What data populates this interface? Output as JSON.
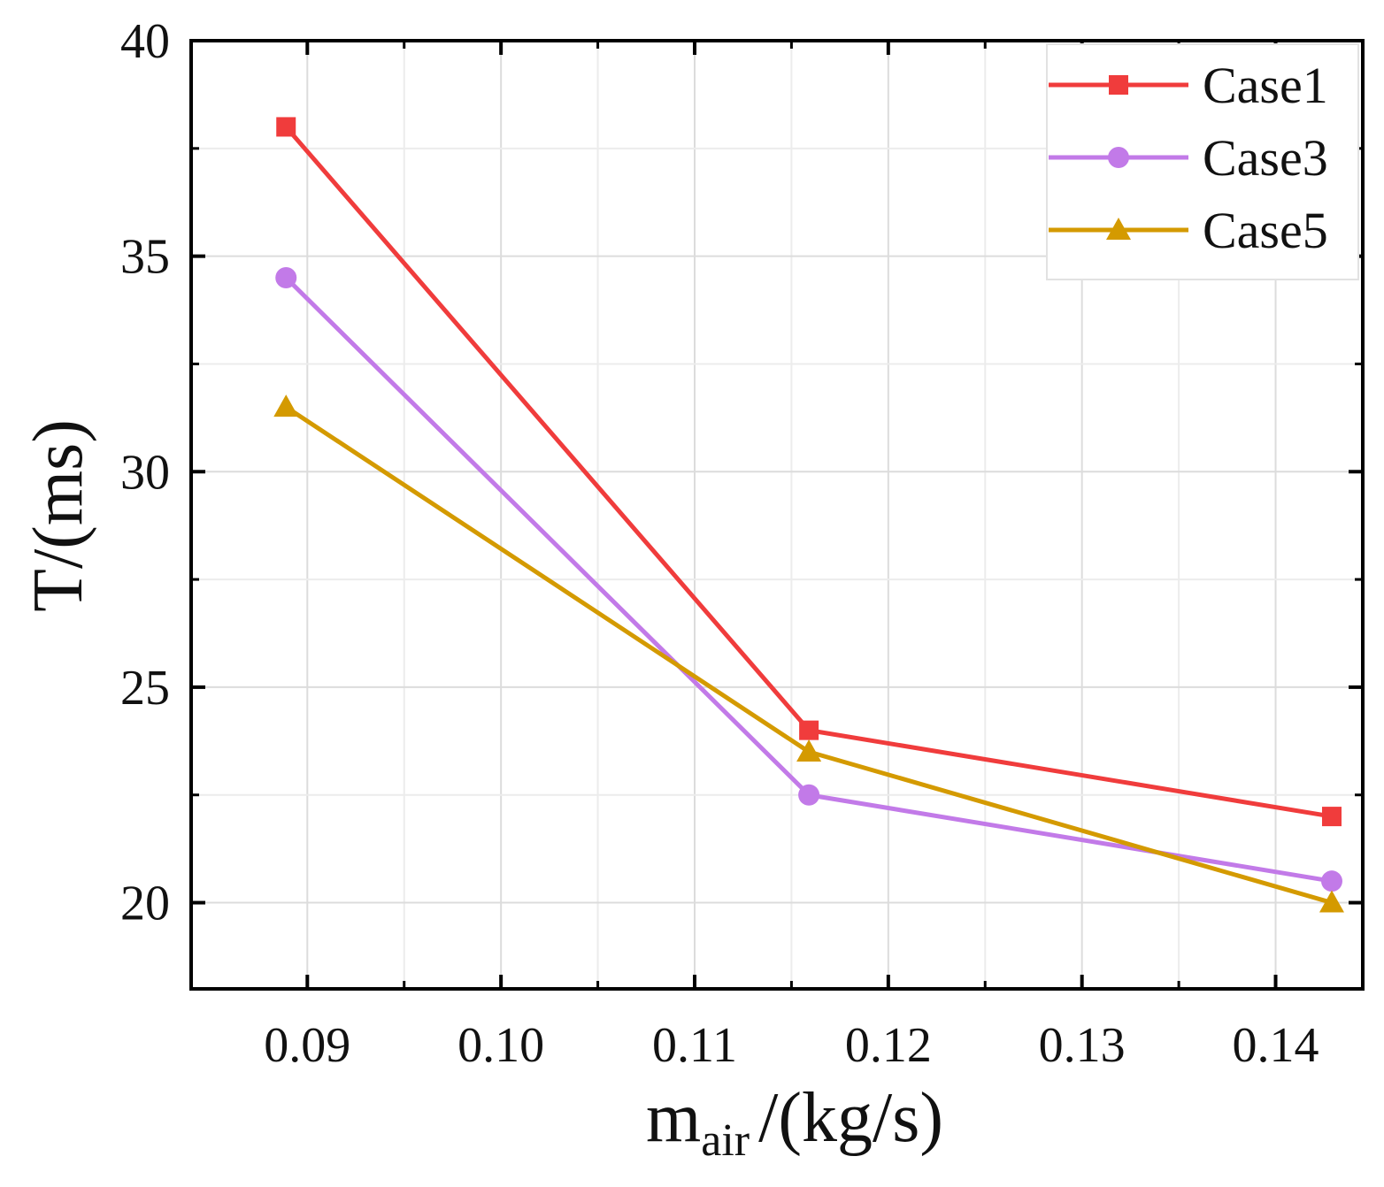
{
  "chart_data": {
    "type": "line",
    "title": "",
    "xlabel": {
      "main": "m",
      "sub": "air",
      "unit": "/(kg/s)"
    },
    "ylabel": "T/(ms)",
    "xlim": [
      0.084,
      0.1445
    ],
    "ylim": [
      18.0,
      40.0
    ],
    "xticks": [
      {
        "value": 0.09,
        "label": "0.09"
      },
      {
        "value": 0.1,
        "label": "0.10"
      },
      {
        "value": 0.11,
        "label": "0.11"
      },
      {
        "value": 0.12,
        "label": "0.12"
      },
      {
        "value": 0.13,
        "label": "0.13"
      },
      {
        "value": 0.14,
        "label": "0.14"
      }
    ],
    "yticks": [
      {
        "value": 20,
        "label": "20"
      },
      {
        "value": 25,
        "label": "25"
      },
      {
        "value": 30,
        "label": "30"
      },
      {
        "value": 35,
        "label": "35"
      },
      {
        "value": 40,
        "label": "40"
      }
    ],
    "grid": true,
    "legend_position": "top-right",
    "x": [
      0.0889,
      0.1159,
      0.1429
    ],
    "series": [
      {
        "name": "Case1",
        "color": "#f03c3c",
        "marker": "square",
        "values": [
          38.0,
          24.0,
          22.0
        ]
      },
      {
        "name": "Case3",
        "color": "#c27ae8",
        "marker": "circle",
        "values": [
          34.5,
          22.5,
          20.5
        ]
      },
      {
        "name": "Case5",
        "color": "#d49a00",
        "marker": "triangle",
        "values": [
          31.5,
          23.5,
          20.0
        ]
      }
    ]
  }
}
